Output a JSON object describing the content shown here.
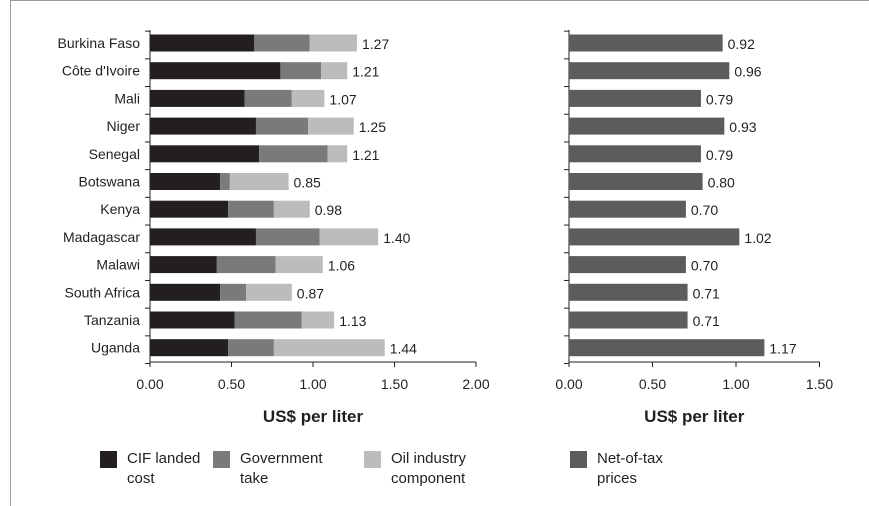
{
  "chart_data": [
    {
      "type": "bar",
      "orientation": "horizontal",
      "stacked": true,
      "categories": [
        "Burkina Faso",
        "Côte d'Ivoire",
        "Mali",
        "Niger",
        "Senegal",
        "Botswana",
        "Kenya",
        "Madagascar",
        "Malawi",
        "South Africa",
        "Tanzania",
        "Uganda"
      ],
      "series": [
        {
          "name": "CIF landed cost",
          "color": "#231f20",
          "values": [
            0.64,
            0.8,
            0.58,
            0.65,
            0.67,
            0.43,
            0.48,
            0.65,
            0.41,
            0.43,
            0.52,
            0.48
          ]
        },
        {
          "name": "Government take",
          "color": "#7a7a7a",
          "values": [
            0.34,
            0.25,
            0.29,
            0.32,
            0.42,
            0.06,
            0.28,
            0.39,
            0.36,
            0.16,
            0.41,
            0.28
          ]
        },
        {
          "name": "Oil industry component",
          "color": "#bcbcbc",
          "values": [
            0.29,
            0.16,
            0.2,
            0.28,
            0.12,
            0.36,
            0.22,
            0.36,
            0.29,
            0.28,
            0.2,
            0.68
          ]
        }
      ],
      "totals": [
        "1.27",
        "1.21",
        "1.07",
        "1.25",
        "1.21",
        "0.85",
        "0.98",
        "1.40",
        "1.06",
        "0.87",
        "1.13",
        "1.44"
      ],
      "xlabel": "US$ per liter",
      "xlim": [
        0,
        2.0
      ],
      "xticks": [
        "0.00",
        "0.50",
        "1.00",
        "1.50",
        "2.00"
      ],
      "grid": false
    },
    {
      "type": "bar",
      "orientation": "horizontal",
      "categories": [
        "Burkina Faso",
        "Côte d'Ivoire",
        "Mali",
        "Niger",
        "Senegal",
        "Botswana",
        "Kenya",
        "Madagascar",
        "Malawi",
        "South Africa",
        "Tanzania",
        "Uganda"
      ],
      "series": [
        {
          "name": "Net-of-tax prices",
          "color": "#5c5c5c",
          "values": [
            0.92,
            0.96,
            0.79,
            0.93,
            0.79,
            0.8,
            0.7,
            1.02,
            0.7,
            0.71,
            0.71,
            1.17
          ]
        }
      ],
      "value_labels": [
        "0.92",
        "0.96",
        "0.79",
        "0.93",
        "0.79",
        "0.80",
        "0.70",
        "1.02",
        "0.70",
        "0.71",
        "0.71",
        "1.17"
      ],
      "xlabel": "US$ per liter",
      "xlim": [
        0,
        1.5
      ],
      "xticks": [
        "0.00",
        "0.50",
        "1.00",
        "1.50"
      ],
      "grid": false
    }
  ],
  "legend": {
    "items": [
      {
        "line1": "CIF landed",
        "line2": "cost",
        "color": "#231f20"
      },
      {
        "line1": "Government",
        "line2": "take",
        "color": "#7a7a7a"
      },
      {
        "line1": "Oil industry",
        "line2": "component",
        "color": "#bcbcbc"
      },
      {
        "line1": "Net-of-tax",
        "line2": "prices",
        "color": "#5c5c5c"
      }
    ],
    "placement": "bottom"
  }
}
